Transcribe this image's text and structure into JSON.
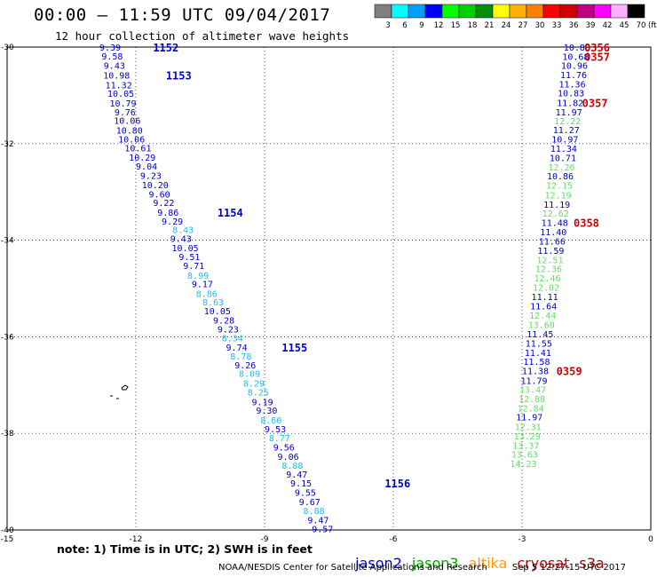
{
  "header": {
    "title": "00:00 – 11:59 UTC 09/04/2017",
    "subtitle": "12 hour collection of altimeter wave heights"
  },
  "colorbar": {
    "ticks": [
      "3",
      "6",
      "9",
      "12",
      "15",
      "18",
      "21",
      "24",
      "27",
      "30",
      "33",
      "36",
      "39",
      "42",
      "45",
      "70"
    ],
    "unit": "(ft)",
    "colors": [
      "#808080",
      "#00ffff",
      "#00a0ff",
      "#0000ff",
      "#00ff00",
      "#00d000",
      "#009000",
      "#ffff00",
      "#ffb000",
      "#ff8000",
      "#ff0000",
      "#d00000",
      "#c00080",
      "#ff00ff",
      "#ffb0ff",
      "#000000"
    ]
  },
  "note": "note: 1) Time is in UTC; 2) SWH is in feet",
  "missions": [
    {
      "name": "jason2",
      "color": "#0000cc"
    },
    {
      "name": "jason3",
      "color": "#00aa00"
    },
    {
      "name": "altika",
      "color": "#ff9900"
    },
    {
      "name": "cryosat",
      "color": "#cc0000"
    },
    {
      "name": "s3a",
      "color": "#aa0000"
    }
  ],
  "footer": {
    "credit": "NOAA/NESDIS Center for Satellite Applications and Research",
    "timestamp": "Sep 5 12:27:15 UTC 2017"
  },
  "chart_data": {
    "type": "scatter",
    "xlim": [
      -15,
      0
    ],
    "ylim": [
      -40,
      -30
    ],
    "xticks": [
      "-15",
      "-12",
      "-9",
      "-6",
      "-3",
      "0"
    ],
    "yticks": [
      "-30",
      "-32",
      "-34",
      "-36",
      "-38",
      "-40"
    ],
    "grid": true,
    "level_colors": {
      "6": "#22bbee",
      "9": "#0000cc",
      "12": "#66dd66",
      "ref": "#cc0000"
    },
    "series": [
      {
        "name": "jason2",
        "values": [
          {
            "x": -12.6,
            "y": -30.0,
            "v": "9.39",
            "c": "9"
          },
          {
            "x": -12.55,
            "y": -30.18,
            "v": "9.58",
            "c": "9"
          },
          {
            "x": -12.5,
            "y": -30.38,
            "v": "9.43",
            "c": "9"
          },
          {
            "x": -12.45,
            "y": -30.58,
            "v": "10.98",
            "c": "9"
          },
          {
            "x": -12.4,
            "y": -30.78,
            "v": "11.32",
            "c": "9"
          },
          {
            "x": -12.35,
            "y": -30.96,
            "v": "10.05",
            "c": "9"
          },
          {
            "x": -12.3,
            "y": -31.16,
            "v": "10.79",
            "c": "9"
          },
          {
            "x": -12.25,
            "y": -31.34,
            "v": "9.76",
            "c": "9"
          },
          {
            "x": -12.2,
            "y": -31.52,
            "v": "10.06",
            "c": "9"
          },
          {
            "x": -12.15,
            "y": -31.72,
            "v": "10.80",
            "c": "9"
          },
          {
            "x": -12.1,
            "y": -31.9,
            "v": "10.06",
            "c": "9"
          },
          {
            "x": -11.95,
            "y": -32.09,
            "v": "10.61",
            "c": "9"
          },
          {
            "x": -11.85,
            "y": -32.28,
            "v": "10.29",
            "c": "9"
          },
          {
            "x": -11.75,
            "y": -32.46,
            "v": "9.04",
            "c": "9"
          },
          {
            "x": -11.65,
            "y": -32.66,
            "v": "9.23",
            "c": "9"
          },
          {
            "x": -11.55,
            "y": -32.85,
            "v": "10.20",
            "c": "9"
          },
          {
            "x": -11.45,
            "y": -33.04,
            "v": "9.60",
            "c": "9"
          },
          {
            "x": -11.35,
            "y": -33.22,
            "v": "9.22",
            "c": "9"
          },
          {
            "x": -11.25,
            "y": -33.42,
            "v": "9.86",
            "c": "9"
          },
          {
            "x": -11.15,
            "y": -33.6,
            "v": "9.29",
            "c": "9"
          },
          {
            "x": -10.9,
            "y": -33.78,
            "v": "8.43",
            "c": "6"
          },
          {
            "x": -10.95,
            "y": -33.96,
            "v": "9.43",
            "c": "9"
          },
          {
            "x": -10.85,
            "y": -34.15,
            "v": "10.05",
            "c": "9"
          },
          {
            "x": -10.75,
            "y": -34.34,
            "v": "9.51",
            "c": "9"
          },
          {
            "x": -10.65,
            "y": -34.52,
            "v": "9.71",
            "c": "9"
          },
          {
            "x": -10.55,
            "y": -34.72,
            "v": "8.99",
            "c": "6"
          },
          {
            "x": -10.45,
            "y": -34.9,
            "v": "9.17",
            "c": "9"
          },
          {
            "x": -10.35,
            "y": -35.1,
            "v": "8.86",
            "c": "6"
          },
          {
            "x": -10.2,
            "y": -35.28,
            "v": "8.63",
            "c": "6"
          },
          {
            "x": -10.1,
            "y": -35.46,
            "v": "10.05",
            "c": "9"
          },
          {
            "x": -9.95,
            "y": -35.65,
            "v": "9.28",
            "c": "9"
          },
          {
            "x": -9.85,
            "y": -35.84,
            "v": "9.23",
            "c": "9"
          },
          {
            "x": -9.75,
            "y": -36.02,
            "v": "8.34",
            "c": "6"
          },
          {
            "x": -9.65,
            "y": -36.21,
            "v": "9.74",
            "c": "9"
          },
          {
            "x": -9.55,
            "y": -36.4,
            "v": "8.78",
            "c": "6"
          },
          {
            "x": -9.45,
            "y": -36.58,
            "v": "9.26",
            "c": "9"
          },
          {
            "x": -9.35,
            "y": -36.76,
            "v": "8.09",
            "c": "6"
          },
          {
            "x": -9.25,
            "y": -36.96,
            "v": "8.29",
            "c": "6"
          },
          {
            "x": -9.15,
            "y": -37.14,
            "v": "8.25",
            "c": "6"
          },
          {
            "x": -9.05,
            "y": -37.34,
            "v": "9.19",
            "c": "9"
          },
          {
            "x": -8.95,
            "y": -37.52,
            "v": "9.30",
            "c": "9"
          },
          {
            "x": -8.85,
            "y": -37.72,
            "v": "8.60",
            "c": "6"
          },
          {
            "x": -8.75,
            "y": -37.9,
            "v": "9.53",
            "c": "9"
          },
          {
            "x": -8.65,
            "y": -38.09,
            "v": "8.77",
            "c": "6"
          },
          {
            "x": -8.55,
            "y": -38.28,
            "v": "9.56",
            "c": "9"
          },
          {
            "x": -8.45,
            "y": -38.47,
            "v": "9.06",
            "c": "9"
          },
          {
            "x": -8.35,
            "y": -38.66,
            "v": "8.88",
            "c": "6"
          },
          {
            "x": -8.25,
            "y": -38.84,
            "v": "9.47",
            "c": "9"
          },
          {
            "x": -8.15,
            "y": -39.03,
            "v": "9.15",
            "c": "9"
          },
          {
            "x": -8.05,
            "y": -39.22,
            "v": "9.55",
            "c": "9"
          },
          {
            "x": -7.95,
            "y": -39.41,
            "v": "9.67",
            "c": "9"
          },
          {
            "x": -7.85,
            "y": -39.6,
            "v": "8.88",
            "c": "6"
          },
          {
            "x": -7.75,
            "y": -39.79,
            "v": "9.47",
            "c": "9"
          },
          {
            "x": -7.65,
            "y": -39.97,
            "v": "9.57",
            "c": "9"
          }
        ]
      },
      {
        "name": "jason3",
        "values": [
          {
            "x": -1.72,
            "y": -30.0,
            "v": "10.80",
            "c": "9"
          },
          {
            "x": -1.75,
            "y": -30.19,
            "v": "10.68",
            "c": "9"
          },
          {
            "x": -1.78,
            "y": -30.38,
            "v": "10.96",
            "c": "9"
          },
          {
            "x": -1.8,
            "y": -30.57,
            "v": "11.76",
            "c": "9"
          },
          {
            "x": -1.83,
            "y": -30.76,
            "v": "11.36",
            "c": "9"
          },
          {
            "x": -1.86,
            "y": -30.95,
            "v": "10.83",
            "c": "9"
          },
          {
            "x": -1.88,
            "y": -31.15,
            "v": "11.82",
            "c": "9"
          },
          {
            "x": -1.91,
            "y": -31.34,
            "v": "11.97",
            "c": "9"
          },
          {
            "x": -1.94,
            "y": -31.53,
            "v": "12.22",
            "c": "12"
          },
          {
            "x": -1.97,
            "y": -31.71,
            "v": "11.27",
            "c": "9"
          },
          {
            "x": -2.0,
            "y": -31.9,
            "v": "10.97",
            "c": "9"
          },
          {
            "x": -2.03,
            "y": -32.1,
            "v": "11.34",
            "c": "9"
          },
          {
            "x": -2.05,
            "y": -32.29,
            "v": "10.71",
            "c": "9"
          },
          {
            "x": -2.08,
            "y": -32.48,
            "v": "12.26",
            "c": "12"
          },
          {
            "x": -2.11,
            "y": -32.67,
            "v": "10.86",
            "c": "9"
          },
          {
            "x": -2.13,
            "y": -32.86,
            "v": "12.15",
            "c": "12"
          },
          {
            "x": -2.16,
            "y": -33.06,
            "v": "12.19",
            "c": "12"
          },
          {
            "x": -2.19,
            "y": -33.25,
            "v": "11.19",
            "c": "9"
          },
          {
            "x": -2.22,
            "y": -33.44,
            "v": "12.62",
            "c": "12"
          },
          {
            "x": -2.24,
            "y": -33.63,
            "v": "11.48",
            "c": "9"
          },
          {
            "x": -2.27,
            "y": -33.82,
            "v": "11.40",
            "c": "9"
          },
          {
            "x": -2.3,
            "y": -34.02,
            "v": "11.66",
            "c": "9"
          },
          {
            "x": -2.33,
            "y": -34.21,
            "v": "11.59",
            "c": "9"
          },
          {
            "x": -2.35,
            "y": -34.4,
            "v": "12.51",
            "c": "12"
          },
          {
            "x": -2.38,
            "y": -34.59,
            "v": "12.36",
            "c": "12"
          },
          {
            "x": -2.41,
            "y": -34.78,
            "v": "12.46",
            "c": "12"
          },
          {
            "x": -2.44,
            "y": -34.97,
            "v": "12.02",
            "c": "12"
          },
          {
            "x": -2.47,
            "y": -35.17,
            "v": "11.11",
            "c": "9"
          },
          {
            "x": -2.5,
            "y": -35.36,
            "v": "11.64",
            "c": "9"
          },
          {
            "x": -2.52,
            "y": -35.55,
            "v": "12.44",
            "c": "12"
          },
          {
            "x": -2.55,
            "y": -35.74,
            "v": "13.60",
            "c": "12"
          },
          {
            "x": -2.58,
            "y": -35.94,
            "v": "11.45",
            "c": "9"
          },
          {
            "x": -2.61,
            "y": -36.13,
            "v": "11.55",
            "c": "9"
          },
          {
            "x": -2.63,
            "y": -36.32,
            "v": "11.41",
            "c": "9"
          },
          {
            "x": -2.66,
            "y": -36.51,
            "v": "11.58",
            "c": "9"
          },
          {
            "x": -2.69,
            "y": -36.7,
            "v": "11.38",
            "c": "9"
          },
          {
            "x": -2.72,
            "y": -36.9,
            "v": "11.79",
            "c": "9"
          },
          {
            "x": -2.75,
            "y": -37.09,
            "v": "13.47",
            "c": "12"
          },
          {
            "x": -2.77,
            "y": -37.28,
            "v": "12.88",
            "c": "12"
          },
          {
            "x": -2.8,
            "y": -37.47,
            "v": "12.84",
            "c": "12"
          },
          {
            "x": -2.83,
            "y": -37.66,
            "v": "11.97",
            "c": "9"
          },
          {
            "x": -2.86,
            "y": -37.86,
            "v": "12.31",
            "c": "12"
          },
          {
            "x": -2.88,
            "y": -38.05,
            "v": "13.29",
            "c": "12"
          },
          {
            "x": -2.91,
            "y": -38.24,
            "v": "13.37",
            "c": "12"
          },
          {
            "x": -2.94,
            "y": -38.43,
            "v": "13.63",
            "c": "12"
          },
          {
            "x": -2.97,
            "y": -38.62,
            "v": "14.23",
            "c": "12"
          }
        ]
      }
    ],
    "passes": [
      {
        "x": -11.6,
        "y": -30.0,
        "label": "1152",
        "c": "9"
      },
      {
        "x": -11.3,
        "y": -30.58,
        "label": "1153",
        "c": "9"
      },
      {
        "x": -10.1,
        "y": -33.42,
        "label": "1154",
        "c": "9"
      },
      {
        "x": -8.6,
        "y": -36.21,
        "label": "1155",
        "c": "9"
      },
      {
        "x": -6.2,
        "y": -39.03,
        "label": "1156",
        "c": "9"
      },
      {
        "x": -1.55,
        "y": -30.0,
        "label": "0356",
        "c": "ref"
      },
      {
        "x": -1.55,
        "y": -30.19,
        "label": "0357",
        "c": "ref"
      },
      {
        "x": -1.6,
        "y": -31.15,
        "label": "0357",
        "c": "ref"
      },
      {
        "x": -1.8,
        "y": -33.63,
        "label": "0358",
        "c": "ref"
      },
      {
        "x": -2.2,
        "y": -36.7,
        "label": "0359",
        "c": "ref"
      }
    ]
  }
}
